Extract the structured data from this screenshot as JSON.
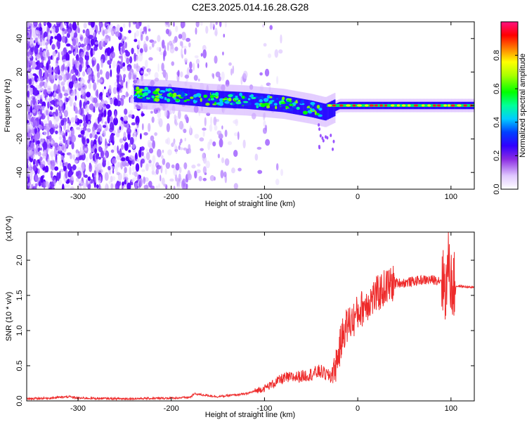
{
  "title": "C2E3.2025.014.16.28.G28",
  "chart_data": [
    {
      "type": "heatmap",
      "title": "C2E3.2025.014.16.28.G28",
      "xlabel": "Height of straight line (km)",
      "ylabel": "Frequency (Hz)",
      "xlim": [
        -355,
        125
      ],
      "ylim": [
        -50,
        50
      ],
      "xticks": [
        -300,
        -200,
        -100,
        0,
        100
      ],
      "yticks": [
        -40,
        -20,
        0,
        20,
        40
      ],
      "colorbar": {
        "label": "Normalized spectral amplitude",
        "range": [
          0,
          1
        ],
        "ticks": [
          "0.0",
          "0.2",
          "0.4",
          "0.6",
          "0.8"
        ],
        "colormap": [
          "#e8d5ff",
          "#a050ff",
          "#5000ff",
          "#0000ff",
          "#00ffff",
          "#00ff00",
          "#ffff00",
          "#ff0000",
          "#ff0080"
        ]
      },
      "signal_trace": {
        "x": [
          -240,
          -200,
          -160,
          -120,
          -80,
          -50,
          -35,
          -20,
          0,
          50,
          100,
          125
        ],
        "frequency": [
          7,
          6,
          4,
          3,
          1,
          -2,
          -4,
          0,
          0,
          0,
          0,
          0
        ]
      },
      "noise_region_x": [
        -355,
        -140
      ]
    },
    {
      "type": "line",
      "xlabel": "Height of straight line (km)",
      "ylabel": "SNR (10 * v/v)",
      "ymultiplier": "(x10^4)",
      "xlim": [
        -355,
        125
      ],
      "ylim": [
        0,
        2.4
      ],
      "xticks": [
        -300,
        -200,
        -100,
        0,
        100
      ],
      "yticks": [
        "0.0",
        "0.5",
        "1.0",
        "1.5",
        "2.0"
      ],
      "color": "#ee2b2b",
      "series": [
        {
          "x": [
            -355,
            -330,
            -310,
            -300,
            -250,
            -200,
            -180,
            -175,
            -150,
            -120,
            -100,
            -90,
            -80,
            -60,
            -50,
            -40,
            -30,
            -25,
            -20,
            -15,
            -10,
            -5,
            0,
            10,
            20,
            30,
            40,
            50,
            60,
            70,
            80,
            90,
            95,
            98,
            100,
            102,
            105,
            110,
            125
          ],
          "values": [
            0.03,
            0.04,
            0.06,
            0.04,
            0.03,
            0.04,
            0.05,
            0.1,
            0.06,
            0.1,
            0.18,
            0.25,
            0.32,
            0.35,
            0.38,
            0.42,
            0.35,
            0.45,
            0.7,
            1.0,
            1.1,
            1.15,
            1.25,
            1.4,
            1.5,
            1.62,
            1.68,
            1.68,
            1.7,
            1.72,
            1.72,
            1.72,
            1.6,
            2.05,
            1.65,
            1.62,
            1.63,
            1.63,
            1.61
          ]
        }
      ]
    }
  ]
}
